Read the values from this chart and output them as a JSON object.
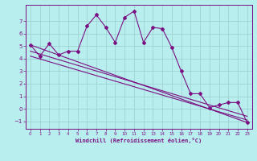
{
  "xlabel": "Windchill (Refroidissement éolien,°C)",
  "x": [
    0,
    1,
    2,
    3,
    4,
    5,
    6,
    7,
    8,
    9,
    10,
    11,
    12,
    13,
    14,
    15,
    16,
    17,
    18,
    19,
    20,
    21,
    22,
    23
  ],
  "main_y": [
    5.1,
    4.2,
    5.2,
    4.3,
    4.6,
    4.6,
    6.6,
    7.5,
    6.5,
    5.3,
    7.3,
    7.8,
    5.3,
    6.5,
    6.4,
    4.9,
    3.0,
    1.2,
    1.2,
    0.1,
    0.3,
    0.5,
    0.5,
    -1.1
  ],
  "trend_lines": [
    {
      "x": [
        0,
        23
      ],
      "y": [
        5.1,
        -1.1
      ]
    },
    {
      "x": [
        0,
        23
      ],
      "y": [
        4.6,
        -0.6
      ]
    },
    {
      "x": [
        0,
        23
      ],
      "y": [
        4.2,
        -0.9
      ]
    }
  ],
  "line_color": "#7B1082",
  "bg_color": "#b8eeee",
  "grid_color": "#9acece",
  "ylim": [
    -1.6,
    8.3
  ],
  "xlim": [
    -0.5,
    23.5
  ],
  "yticks": [
    -1,
    0,
    1,
    2,
    3,
    4,
    5,
    6,
    7
  ],
  "xticks": [
    0,
    1,
    2,
    3,
    4,
    5,
    6,
    7,
    8,
    9,
    10,
    11,
    12,
    13,
    14,
    15,
    16,
    17,
    18,
    19,
    20,
    21,
    22,
    23
  ]
}
